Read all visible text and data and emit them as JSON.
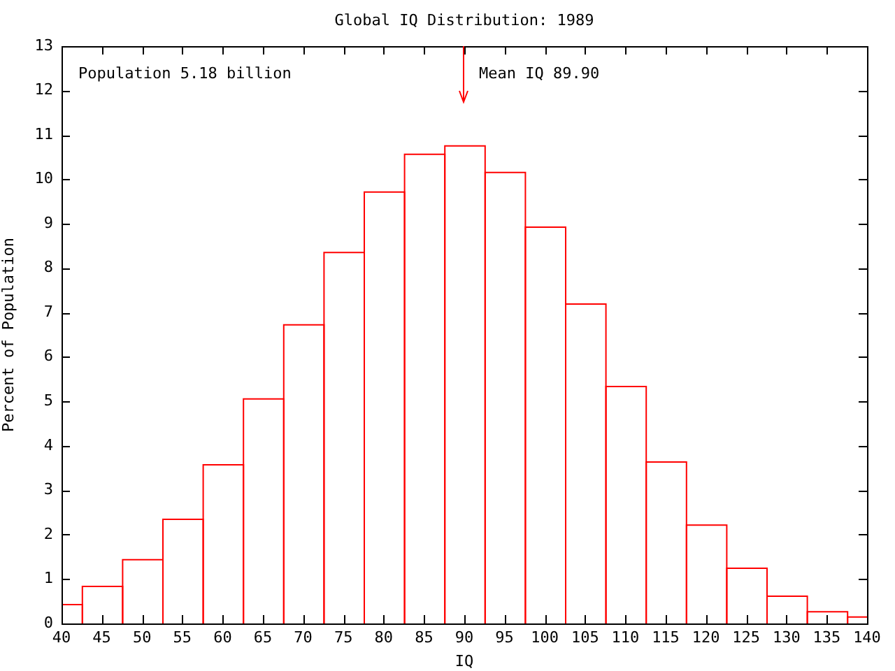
{
  "chart_data": {
    "type": "histogram",
    "title": "Global IQ Distribution: 1989",
    "xlabel": "IQ",
    "ylabel": "Percent of Population",
    "bins": [
      40,
      42.5,
      47.5,
      52.5,
      57.5,
      62.5,
      67.5,
      72.5,
      77.5,
      82.5,
      87.5,
      92.5,
      97.5,
      102.5,
      107.5,
      112.5,
      117.5,
      122.5,
      127.5,
      132.5,
      137.5,
      140
    ],
    "values": [
      0.44,
      0.85,
      1.45,
      2.36,
      3.59,
      5.07,
      6.74,
      8.37,
      9.73,
      10.58,
      10.77,
      10.17,
      8.94,
      7.21,
      5.35,
      3.65,
      2.23,
      1.26,
      0.63,
      0.28,
      0.16
    ],
    "color": "#ff0000",
    "xlim": [
      40,
      140
    ],
    "xticks": [
      40,
      45,
      50,
      55,
      60,
      65,
      70,
      75,
      80,
      85,
      90,
      95,
      100,
      105,
      110,
      115,
      120,
      125,
      130,
      135,
      140
    ],
    "ylim": [
      0,
      13
    ],
    "yticks": [
      0,
      1,
      2,
      3,
      4,
      5,
      6,
      7,
      8,
      9,
      10,
      11,
      12,
      13
    ],
    "grid": false,
    "legend": false,
    "ref_lines": [
      {
        "axis": "x",
        "value": 89.9,
        "label": "Mean IQ 89.90",
        "color": "#ff0000"
      }
    ],
    "annotations": [
      "Population 5.18 billion"
    ]
  }
}
